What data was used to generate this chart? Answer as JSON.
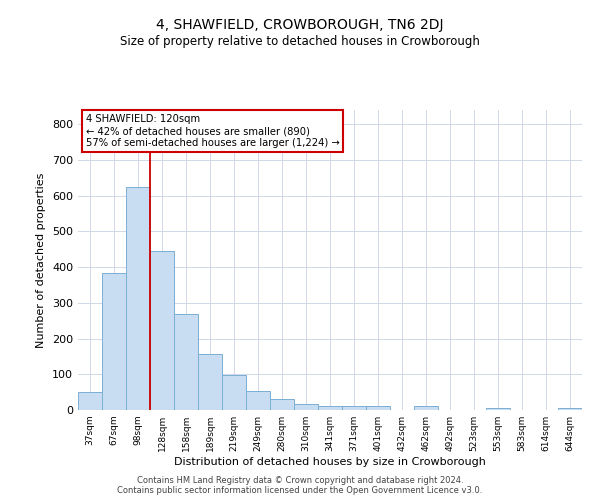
{
  "title": "4, SHAWFIELD, CROWBOROUGH, TN6 2DJ",
  "subtitle": "Size of property relative to detached houses in Crowborough",
  "xlabel": "Distribution of detached houses by size in Crowborough",
  "ylabel": "Number of detached properties",
  "bar_color": "#c9ddf2",
  "bar_edge_color": "#7bafd4",
  "background_color": "#ffffff",
  "grid_color": "#d0d8e8",
  "categories": [
    "37sqm",
    "67sqm",
    "98sqm",
    "128sqm",
    "158sqm",
    "189sqm",
    "219sqm",
    "249sqm",
    "280sqm",
    "310sqm",
    "341sqm",
    "371sqm",
    "401sqm",
    "432sqm",
    "462sqm",
    "492sqm",
    "523sqm",
    "553sqm",
    "583sqm",
    "614sqm",
    "644sqm"
  ],
  "values": [
    50,
    385,
    625,
    445,
    270,
    158,
    98,
    52,
    32,
    18,
    10,
    10,
    12,
    0,
    10,
    0,
    0,
    5,
    0,
    0,
    5
  ],
  "ylim": [
    0,
    840
  ],
  "yticks": [
    0,
    100,
    200,
    300,
    400,
    500,
    600,
    700,
    800
  ],
  "vline_color": "#cc0000",
  "annotation_line1": "4 SHAWFIELD: 120sqm",
  "annotation_line2": "← 42% of detached houses are smaller (890)",
  "annotation_line3": "57% of semi-detached houses are larger (1,224) →",
  "annotation_box_color": "#ffffff",
  "annotation_box_edge": "#cc0000",
  "footnote1": "Contains HM Land Registry data © Crown copyright and database right 2024.",
  "footnote2": "Contains public sector information licensed under the Open Government Licence v3.0."
}
